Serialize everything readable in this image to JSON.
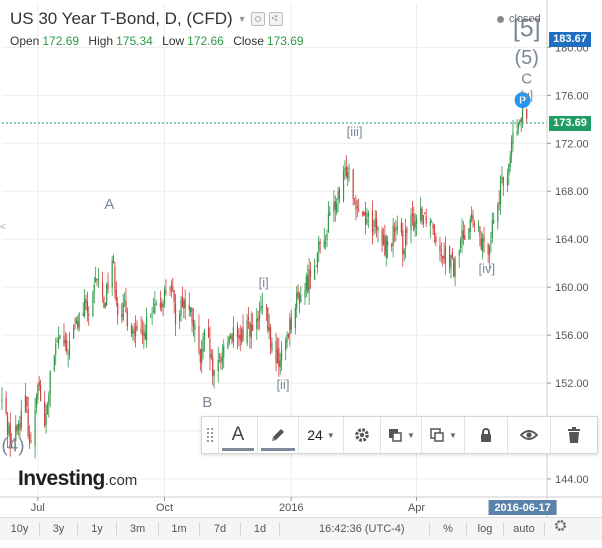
{
  "header": {
    "title": "US 30 Year T-Bond, D, (CFD)",
    "ohlc": [
      {
        "label": "Open",
        "value": "172.69"
      },
      {
        "label": "High",
        "value": "175.34"
      },
      {
        "label": "Low",
        "value": "172.66"
      },
      {
        "label": "Close",
        "value": "173.69"
      }
    ],
    "status": "closed",
    "icons": [
      "eye-icon",
      "gear-icon",
      "chevron-down-icon"
    ]
  },
  "colors": {
    "up": "#2e9a47",
    "down": "#d13e3e",
    "axis_tag_blue": "#1e6fbf",
    "last_price_tag": "#1e9e63",
    "marker_blue": "#2196f3",
    "wave_label": "#7a8794",
    "date_tag": "#5b82a8"
  },
  "chart_data": {
    "type": "candlestick",
    "interval": "D",
    "y_ticks": [
      "144.00",
      "148.00",
      "152.00",
      "156.00",
      "160.00",
      "164.00",
      "168.00",
      "172.00",
      "176.00",
      "180.00"
    ],
    "ylim": [
      142.5,
      183.7
    ],
    "x_ticks": [
      "Jul",
      "Oct",
      "2016",
      "Apr"
    ],
    "x_tick_dates": [
      "2015-07-01",
      "2015-10-01",
      "2016-01-01",
      "2016-04-01"
    ],
    "x_range": [
      "2015-06-05",
      "2016-07-04"
    ],
    "highlight_date": "2016-06-17",
    "high_price_tag": "183.67",
    "last_price": 173.69,
    "last_price_label": "173.69",
    "grid": true,
    "marker": {
      "label": "P",
      "date": "2016-06-17",
      "price": 175.6
    },
    "wave_labels": [
      {
        "text": "(4)",
        "date": "2015-06-13",
        "price": 146.3,
        "size": 19
      },
      {
        "text": "A",
        "date": "2015-08-22",
        "price": 166.5,
        "size": 15
      },
      {
        "text": "B",
        "date": "2015-11-01",
        "price": 150.0,
        "size": 15
      },
      {
        "text": "[i]",
        "date": "2015-12-12",
        "price": 160.0,
        "size": 13
      },
      {
        "text": "[ii]",
        "date": "2015-12-26",
        "price": 151.5,
        "size": 13
      },
      {
        "text": "[iii]",
        "date": "2016-02-16",
        "price": 172.6,
        "size": 13
      },
      {
        "text": "[iv]",
        "date": "2016-05-22",
        "price": 161.2,
        "size": 13
      },
      {
        "text": "[5]",
        "date": "2016-06-20",
        "price": 180.9,
        "size": 25
      },
      {
        "text": "(5)",
        "date": "2016-06-20",
        "price": 178.6,
        "size": 20
      },
      {
        "text": "C",
        "date": "2016-06-20",
        "price": 177.0,
        "size": 15
      },
      {
        "text": "[v]",
        "date": "2016-06-20",
        "price": 175.7,
        "size": 12
      }
    ],
    "path": [
      [
        "2015-06-05",
        150.5
      ],
      [
        "2015-06-12",
        147.0
      ],
      [
        "2015-06-17",
        148.6
      ],
      [
        "2015-06-22",
        150.4
      ],
      [
        "2015-06-26",
        146.5
      ],
      [
        "2015-07-01",
        152.6
      ],
      [
        "2015-07-06",
        148.0
      ],
      [
        "2015-07-10",
        152.4
      ],
      [
        "2015-07-16",
        155.8
      ],
      [
        "2015-07-22",
        154.6
      ],
      [
        "2015-07-28",
        156.6
      ],
      [
        "2015-08-04",
        158.4
      ],
      [
        "2015-08-08",
        157.6
      ],
      [
        "2015-08-13",
        160.8
      ],
      [
        "2015-08-18",
        158.6
      ],
      [
        "2015-08-24",
        162.4
      ],
      [
        "2015-08-28",
        158.4
      ],
      [
        "2015-09-03",
        157.8
      ],
      [
        "2015-09-08",
        156.4
      ],
      [
        "2015-09-14",
        155.6
      ],
      [
        "2015-09-18",
        156.8
      ],
      [
        "2015-09-24",
        157.8
      ],
      [
        "2015-10-01",
        159.4
      ],
      [
        "2015-10-04",
        160.8
      ],
      [
        "2015-10-09",
        157.6
      ],
      [
        "2015-10-14",
        159.0
      ],
      [
        "2015-10-21",
        157.4
      ],
      [
        "2015-10-27",
        153.8
      ],
      [
        "2015-10-31",
        156.4
      ],
      [
        "2015-11-06",
        152.2
      ],
      [
        "2015-11-12",
        154.6
      ],
      [
        "2015-11-18",
        156.2
      ],
      [
        "2015-11-24",
        155.2
      ],
      [
        "2015-11-30",
        157.2
      ],
      [
        "2015-12-05",
        156.0
      ],
      [
        "2015-12-12",
        158.6
      ],
      [
        "2015-12-18",
        154.8
      ],
      [
        "2015-12-24",
        153.8
      ],
      [
        "2015-12-30",
        156.6
      ],
      [
        "2016-01-05",
        158.8
      ],
      [
        "2016-01-12",
        160.2
      ],
      [
        "2016-01-18",
        162.4
      ],
      [
        "2016-01-24",
        163.4
      ],
      [
        "2016-01-30",
        166.4
      ],
      [
        "2016-02-05",
        167.4
      ],
      [
        "2016-02-11",
        170.4
      ],
      [
        "2016-02-16",
        167.6
      ],
      [
        "2016-02-21",
        166.2
      ],
      [
        "2016-02-28",
        165.6
      ],
      [
        "2016-03-05",
        164.2
      ],
      [
        "2016-03-10",
        163.4
      ],
      [
        "2016-03-16",
        164.6
      ],
      [
        "2016-03-22",
        163.6
      ],
      [
        "2016-03-28",
        165.2
      ],
      [
        "2016-04-04",
        166.4
      ],
      [
        "2016-04-08",
        166.0
      ],
      [
        "2016-04-13",
        165.4
      ],
      [
        "2016-04-18",
        163.2
      ],
      [
        "2016-04-24",
        162.8
      ],
      [
        "2016-04-28",
        161.4
      ],
      [
        "2016-05-04",
        164.2
      ],
      [
        "2016-05-10",
        165.8
      ],
      [
        "2016-05-16",
        164.4
      ],
      [
        "2016-05-21",
        162.6
      ],
      [
        "2016-05-26",
        165.2
      ],
      [
        "2016-05-31",
        167.6
      ],
      [
        "2016-06-06",
        169.8
      ],
      [
        "2016-06-10",
        172.4
      ],
      [
        "2016-06-14",
        173.4
      ],
      [
        "2016-06-17",
        174.4
      ],
      [
        "2016-06-20",
        173.7
      ]
    ]
  },
  "drawing_toolbar": {
    "text_tool_label": "A",
    "font_size": "24",
    "buttons": [
      "drag-handle-icon",
      "text-tool-icon",
      "pencil-icon",
      "font-size-select",
      "gear-icon",
      "fill-color-icon",
      "line-color-icon",
      "lock-icon",
      "eye-icon",
      "trash-icon"
    ]
  },
  "bottom_bar": {
    "ranges": [
      "10y",
      "3y",
      "1y",
      "3m",
      "1m",
      "7d",
      "1d"
    ],
    "time": "16:42:36 (UTC-4)",
    "percent_label": "%",
    "log_label": "log",
    "auto_label": "auto"
  },
  "logo": {
    "brand": "Investing",
    "tld": ".com"
  }
}
